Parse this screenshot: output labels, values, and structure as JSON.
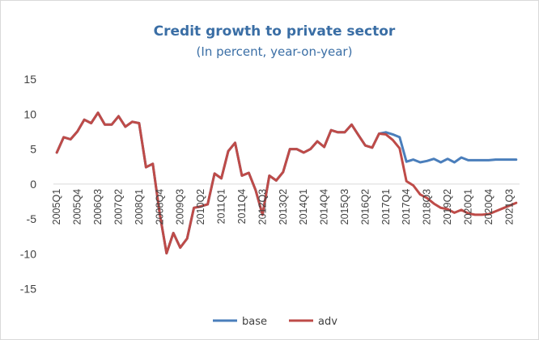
{
  "chart_data": {
    "type": "line",
    "title": "Credit growth to private sector",
    "subtitle": "(In percent, year-on-year)",
    "xlabel": "",
    "ylabel": "",
    "ylim": [
      -20,
      15
    ],
    "yticks": [
      15,
      10,
      5,
      0,
      -5,
      -10,
      -15
    ],
    "grid": false,
    "legend_position": "bottom-center",
    "x": [
      "2005Q1",
      "2005Q2",
      "2005Q3",
      "2005Q4",
      "2006Q1",
      "2006Q2",
      "2006Q3",
      "2006Q4",
      "2007Q1",
      "2007Q2",
      "2007Q3",
      "2007Q4",
      "2008Q1",
      "2008Q2",
      "2008Q3",
      "2008Q4",
      "2009Q1",
      "2009Q2",
      "2009Q3",
      "2009Q4",
      "2010Q1",
      "2010Q2",
      "2010Q3",
      "2010Q4",
      "2011Q1",
      "2011Q2",
      "2011Q3",
      "2011Q4",
      "2012Q1",
      "2012Q2",
      "2012Q3",
      "2012Q4",
      "2013Q1",
      "2013Q2",
      "2013Q3",
      "2013Q4",
      "2014Q1",
      "2014Q2",
      "2014Q3",
      "2014Q4",
      "2015Q1",
      "2015Q2",
      "2015Q3",
      "2015Q4",
      "2016Q1",
      "2016Q2",
      "2016Q3",
      "2016Q4",
      "2017Q1",
      "2017Q2",
      "2017Q3",
      "2017Q4",
      "2018Q1",
      "2018Q2",
      "2018Q3",
      "2018Q4",
      "2019Q1",
      "2019Q2",
      "2019Q3",
      "2019Q4",
      "2020Q1",
      "2020Q2",
      "2020Q3",
      "2020Q4",
      "2021Q1",
      "2021Q2",
      "2021Q3",
      "2021Q4"
    ],
    "x_tick_labels": [
      "2005Q1",
      "2005Q4",
      "2006Q3",
      "2007Q2",
      "2008Q1",
      "2008Q4",
      "2009Q3",
      "2010Q2",
      "2011Q1",
      "2011Q4",
      "2012Q3",
      "2013Q2",
      "2014Q1",
      "2014Q4",
      "2015Q3",
      "2016Q2",
      "2017Q1",
      "2017Q4",
      "2018Q3",
      "2019Q2",
      "2020Q1",
      "2020Q4",
      "2021Q3"
    ],
    "series": [
      {
        "name": "base",
        "color": "#4a7ebb",
        "values": [
          4.5,
          6.7,
          6.4,
          7.5,
          9.2,
          8.7,
          10.2,
          8.5,
          8.5,
          9.7,
          8.2,
          8.9,
          8.7,
          2.4,
          2.9,
          -4.2,
          -9.9,
          -7.0,
          -9.1,
          -7.8,
          -3.4,
          -3.2,
          -2.9,
          1.5,
          0.8,
          4.7,
          5.9,
          1.2,
          1.6,
          -0.9,
          -4.4,
          1.2,
          0.5,
          1.7,
          5.0,
          5.0,
          4.5,
          5.0,
          6.1,
          5.3,
          7.7,
          7.4,
          7.4,
          8.5,
          7.0,
          5.5,
          5.2,
          7.2,
          7.4,
          7.1,
          6.7,
          3.2,
          3.5,
          3.1,
          3.3,
          3.6,
          3.1,
          3.6,
          3.1,
          3.8,
          3.4,
          3.4,
          3.4,
          3.4,
          3.5,
          3.5,
          3.5,
          3.5
        ]
      },
      {
        "name": "adv",
        "color": "#be4b48",
        "values": [
          4.5,
          6.7,
          6.4,
          7.5,
          9.2,
          8.7,
          10.2,
          8.5,
          8.5,
          9.7,
          8.2,
          8.9,
          8.7,
          2.4,
          2.9,
          -4.2,
          -9.9,
          -7.0,
          -9.1,
          -7.8,
          -3.4,
          -3.2,
          -2.9,
          1.5,
          0.8,
          4.7,
          5.9,
          1.2,
          1.6,
          -0.9,
          -4.4,
          1.2,
          0.5,
          1.7,
          5.0,
          5.0,
          4.5,
          5.0,
          6.1,
          5.3,
          7.7,
          7.4,
          7.4,
          8.5,
          7.0,
          5.5,
          5.2,
          7.2,
          7.1,
          6.3,
          5.1,
          0.4,
          -0.2,
          -1.5,
          -2.0,
          -2.8,
          -3.4,
          -3.6,
          -4.1,
          -3.7,
          -4.2,
          -4.4,
          -4.4,
          -4.3,
          -3.9,
          -3.5,
          -3.1,
          -2.7
        ]
      }
    ]
  }
}
